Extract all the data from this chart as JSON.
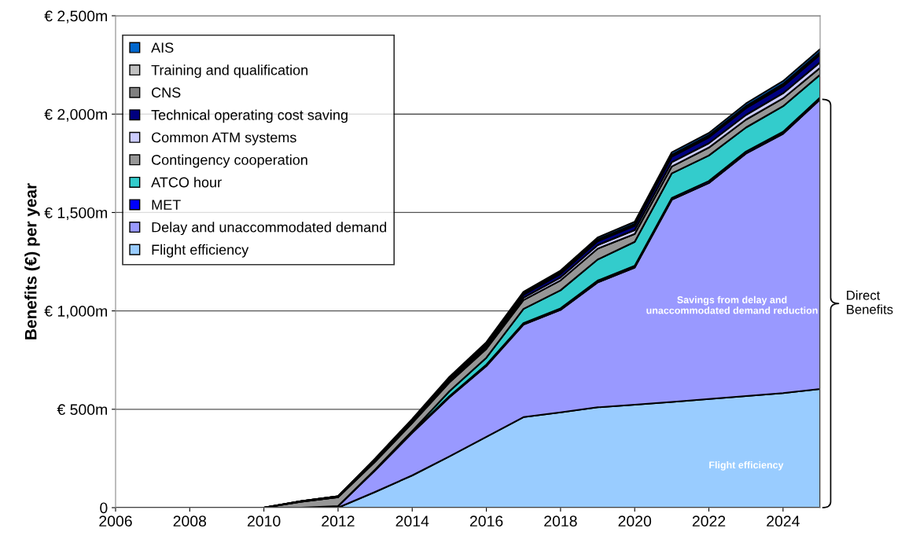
{
  "chart_data": {
    "type": "area",
    "stacked": true,
    "ylabel": "Benefits (€) per year",
    "x": [
      2006,
      2007,
      2008,
      2009,
      2010,
      2011,
      2012,
      2013,
      2014,
      2015,
      2016,
      2017,
      2018,
      2019,
      2020,
      2021,
      2022,
      2023,
      2024,
      2025
    ],
    "xlim": [
      2006,
      2025
    ],
    "xticks": [
      2006,
      2008,
      2010,
      2012,
      2014,
      2016,
      2018,
      2020,
      2022,
      2024
    ],
    "ylim": [
      0,
      2500
    ],
    "yticks": [
      {
        "value": 0,
        "label": "0"
      },
      {
        "value": 500,
        "label": "€ 500m"
      },
      {
        "value": 1000,
        "label": "€ 1,000m"
      },
      {
        "value": 1500,
        "label": "€ 1,500m"
      },
      {
        "value": 2000,
        "label": "€ 2,000m"
      },
      {
        "value": 2500,
        "label": "€ 2,500m"
      }
    ],
    "grid": "y",
    "legend": "top left",
    "series": [
      {
        "name": "Flight efficiency",
        "color": "#99ccff",
        "values": [
          0,
          0,
          0,
          0,
          0,
          0,
          0,
          80,
          164,
          260,
          360,
          460,
          484,
          510,
          523,
          537,
          552,
          567,
          582,
          603
        ]
      },
      {
        "name": "Delay and unaccommodated demand",
        "color": "#9999ff",
        "values": [
          0,
          0,
          0,
          0,
          0,
          0,
          8,
          110,
          216,
          300,
          360,
          470,
          521,
          635,
          697,
          1028,
          1098,
          1233,
          1318,
          1472
        ]
      },
      {
        "name": "MET",
        "color": "#0000ff",
        "values": [
          0,
          0,
          0,
          0,
          0,
          0,
          0,
          4,
          5,
          6,
          7,
          8,
          8,
          9,
          9,
          9,
          10,
          10,
          10,
          10
        ]
      },
      {
        "name": "ATCO hour",
        "color": "#33cccc",
        "values": [
          0,
          0,
          0,
          0,
          0,
          0,
          0,
          0,
          5,
          25,
          35,
          72,
          92,
          107,
          122,
          125,
          130,
          122,
          130,
          115
        ]
      },
      {
        "name": "Contingency cooperation",
        "color": "#969696",
        "values": [
          0,
          0,
          0,
          0,
          0,
          30,
          45,
          40,
          40,
          45,
          45,
          45,
          50,
          55,
          40,
          35,
          40,
          40,
          40,
          35
        ]
      },
      {
        "name": "Common ATM systems",
        "color": "#ccccff",
        "values": [
          0,
          0,
          0,
          0,
          0,
          0,
          0,
          3,
          4,
          6,
          8,
          12,
          15,
          18,
          20,
          22,
          22,
          24,
          26,
          28
        ]
      },
      {
        "name": "Technical operating cost saving",
        "color": "#000080",
        "values": [
          0,
          0,
          0,
          0,
          0,
          3,
          5,
          6,
          8,
          10,
          12,
          15,
          18,
          20,
          22,
          28,
          30,
          34,
          36,
          40
        ]
      },
      {
        "name": "CNS",
        "color": "#808080",
        "values": [
          0,
          0,
          0,
          0,
          0,
          0,
          0,
          2,
          3,
          3,
          4,
          4,
          5,
          5,
          5,
          6,
          6,
          6,
          7,
          7
        ]
      },
      {
        "name": "Training and qualification",
        "color": "#c0c0c0",
        "values": [
          0,
          0,
          0,
          0,
          0,
          0,
          0,
          2,
          2,
          3,
          3,
          3,
          3,
          4,
          4,
          4,
          4,
          5,
          5,
          5
        ]
      },
      {
        "name": "AIS",
        "color": "#0066cc",
        "values": [
          0,
          0,
          0,
          0,
          0,
          0,
          0,
          3,
          4,
          6,
          7,
          8,
          9,
          10,
          11,
          12,
          12,
          13,
          14,
          15
        ]
      }
    ],
    "annotations": [
      "Savings from delay and\nunaccommodated demand reduction",
      "Flight efficiency",
      "Direct\nBenefits"
    ]
  }
}
